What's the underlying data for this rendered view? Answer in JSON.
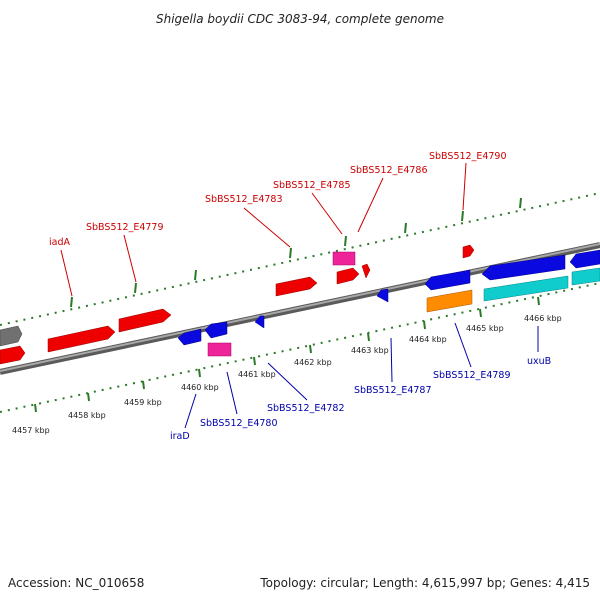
{
  "title": "Shigella boydii CDC 3083-94, complete genome",
  "footer": {
    "accession": "Accession: NC_010658",
    "topology": "Topology: circular; Length: 4,615,997 bp; Genes: 4,415"
  },
  "colors": {
    "backbone": "#808080",
    "tick": "#2a7a2a",
    "label_forward": "#cc0000",
    "label_reverse": "#0000aa",
    "red": "#ee0000",
    "blue": "#0a0ae0",
    "magenta": "#ee2299",
    "cyan": "#11cccc",
    "orange": "#ff8c00",
    "gray": "#707070"
  },
  "kbp_labels": [
    "4457 kbp",
    "4458 kbp",
    "4459 kbp",
    "4460 kbp",
    "4461 kbp",
    "4462 kbp",
    "4463 kbp",
    "4464 kbp",
    "4465 kbp",
    "4466 kbp"
  ],
  "forward_labels": [
    "iadA",
    "SbBS512_E4779",
    "SbBS512_E4783",
    "SbBS512_E4785",
    "SbBS512_E4786",
    "SbBS512_E4790"
  ],
  "reverse_labels": [
    "iraD",
    "SbBS512_E4780",
    "SbBS512_E4782",
    "SbBS512_E4787",
    "SbBS512_E4789",
    "uxuB"
  ]
}
